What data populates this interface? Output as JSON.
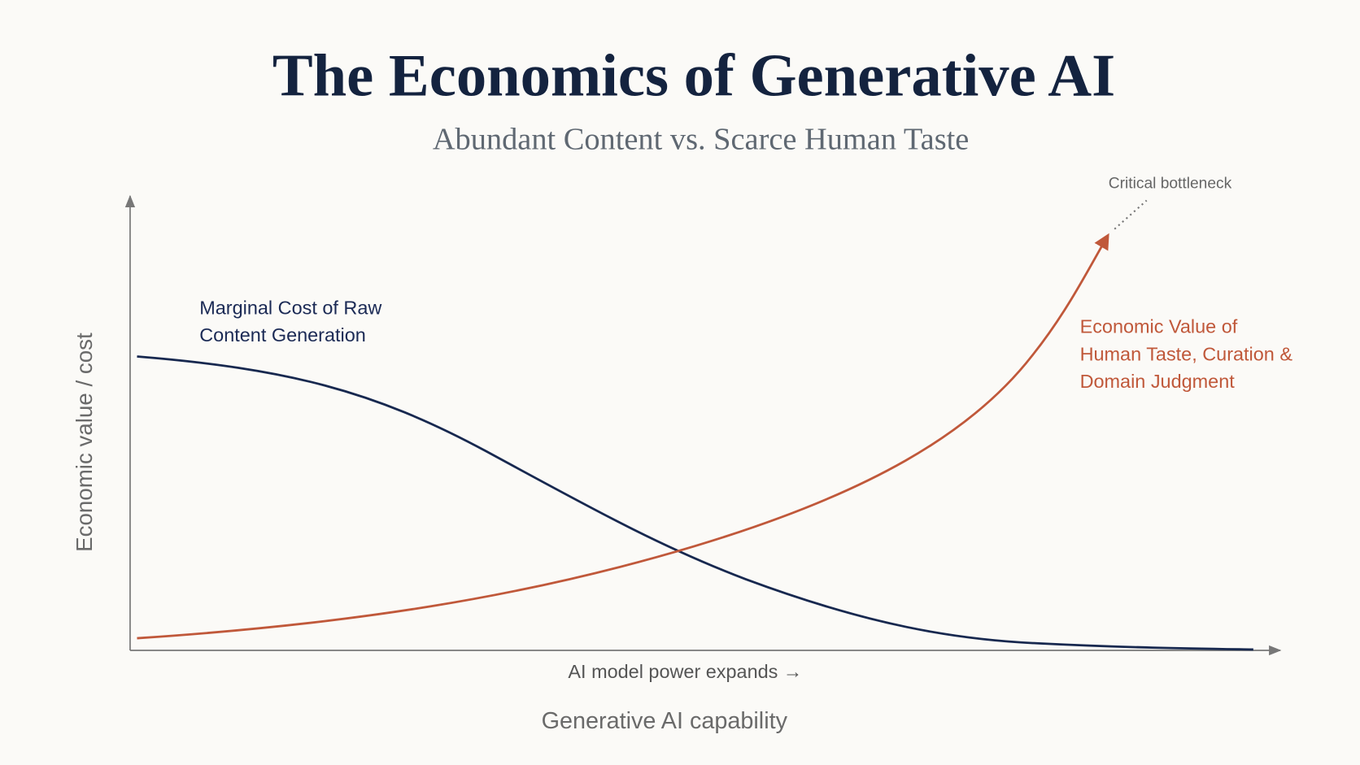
{
  "header": {
    "title": "The Economics of Generative AI",
    "subtitle": "Abundant Content vs. Scarce Human Taste"
  },
  "axes": {
    "y_label": "Economic value / cost",
    "x_note": "AI model power expands →",
    "x_label": "Generative AI capability"
  },
  "curves": [
    {
      "label_lines": [
        "Marginal Cost of Raw",
        "Content Generation"
      ]
    },
    {
      "label_lines": [
        "Economic Value of",
        "Human Taste, Curation &",
        "Domain Judgment"
      ]
    }
  ],
  "annotation": "Critical bottleneck"
}
